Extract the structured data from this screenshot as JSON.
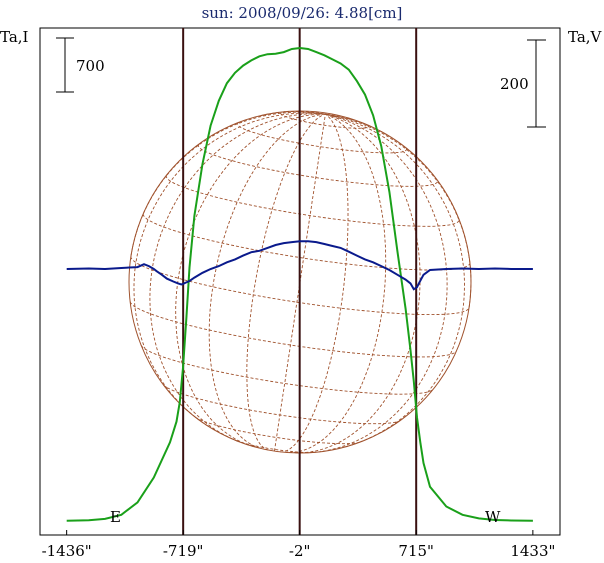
{
  "chart_data": {
    "type": "line",
    "title": "sun: 2008/09/26: 4.88[cm]",
    "left_axis_label": "Ta,I",
    "right_axis_label": "Ta,V",
    "scale_bars": {
      "left": "700",
      "right": "200"
    },
    "limb_labels": {
      "east": "E",
      "west": "W"
    },
    "x_ticks": [
      "-1436\"",
      "-719\"",
      "-2\"",
      "715\"",
      "1433\""
    ],
    "x_tick_values": [
      -1436,
      -719,
      -2,
      715,
      1433
    ],
    "xlim": [
      -1600,
      1600
    ],
    "vertical_lines": [
      -719,
      -2,
      715
    ],
    "colors": {
      "stokes_I": "#1aa01a",
      "stokes_V": "#0a1a8c",
      "grid": "#a0522d",
      "limb_lines": "#3a1010",
      "title": "#1a2a6e"
    },
    "series": [
      {
        "name": "I",
        "x": [
          -1436,
          -1300,
          -1200,
          -1100,
          -1000,
          -900,
          -800,
          -760,
          -740,
          -720,
          -700,
          -680,
          -650,
          -600,
          -550,
          -500,
          -450,
          -400,
          -350,
          -300,
          -250,
          -200,
          -150,
          -100,
          -50,
          0,
          50,
          100,
          150,
          200,
          250,
          300,
          350,
          400,
          450,
          500,
          550,
          600,
          650,
          680,
          700,
          720,
          740,
          760,
          800,
          900,
          1000,
          1100,
          1200,
          1300,
          1433
        ],
        "values": [
          3,
          8,
          20,
          60,
          180,
          420,
          760,
          960,
          1150,
          1480,
          1950,
          2450,
          2950,
          3450,
          3820,
          4060,
          4230,
          4330,
          4400,
          4450,
          4490,
          4510,
          4515,
          4530,
          4560,
          4570,
          4560,
          4530,
          4500,
          4460,
          4420,
          4360,
          4250,
          4120,
          3920,
          3620,
          3180,
          2600,
          2050,
          1650,
          1350,
          1000,
          760,
          560,
          330,
          140,
          60,
          25,
          10,
          5,
          3
        ]
      },
      {
        "name": "V",
        "x": [
          -1436,
          -1300,
          -1200,
          -1100,
          -1000,
          -960,
          -930,
          -900,
          -880,
          -850,
          -820,
          -780,
          -750,
          -730,
          -720,
          -700,
          -680,
          -650,
          -600,
          -550,
          -500,
          -450,
          -400,
          -350,
          -300,
          -250,
          -200,
          -150,
          -100,
          -50,
          0,
          50,
          100,
          150,
          200,
          250,
          300,
          350,
          400,
          450,
          500,
          550,
          600,
          650,
          680,
          700,
          720,
          735,
          760,
          800,
          900,
          1000,
          1100,
          1200,
          1300,
          1433
        ],
        "values": [
          0,
          1,
          0,
          2,
          4,
          10,
          6,
          0,
          -5,
          -12,
          -20,
          -26,
          -30,
          -32,
          -31,
          -28,
          -25,
          -18,
          -8,
          0,
          6,
          14,
          20,
          28,
          35,
          38,
          44,
          50,
          54,
          56,
          58,
          58,
          56,
          52,
          48,
          44,
          36,
          28,
          20,
          14,
          6,
          -2,
          -12,
          -22,
          -30,
          -42,
          -38,
          -28,
          -12,
          -2,
          0,
          1,
          0,
          1,
          0,
          0
        ]
      }
    ]
  }
}
